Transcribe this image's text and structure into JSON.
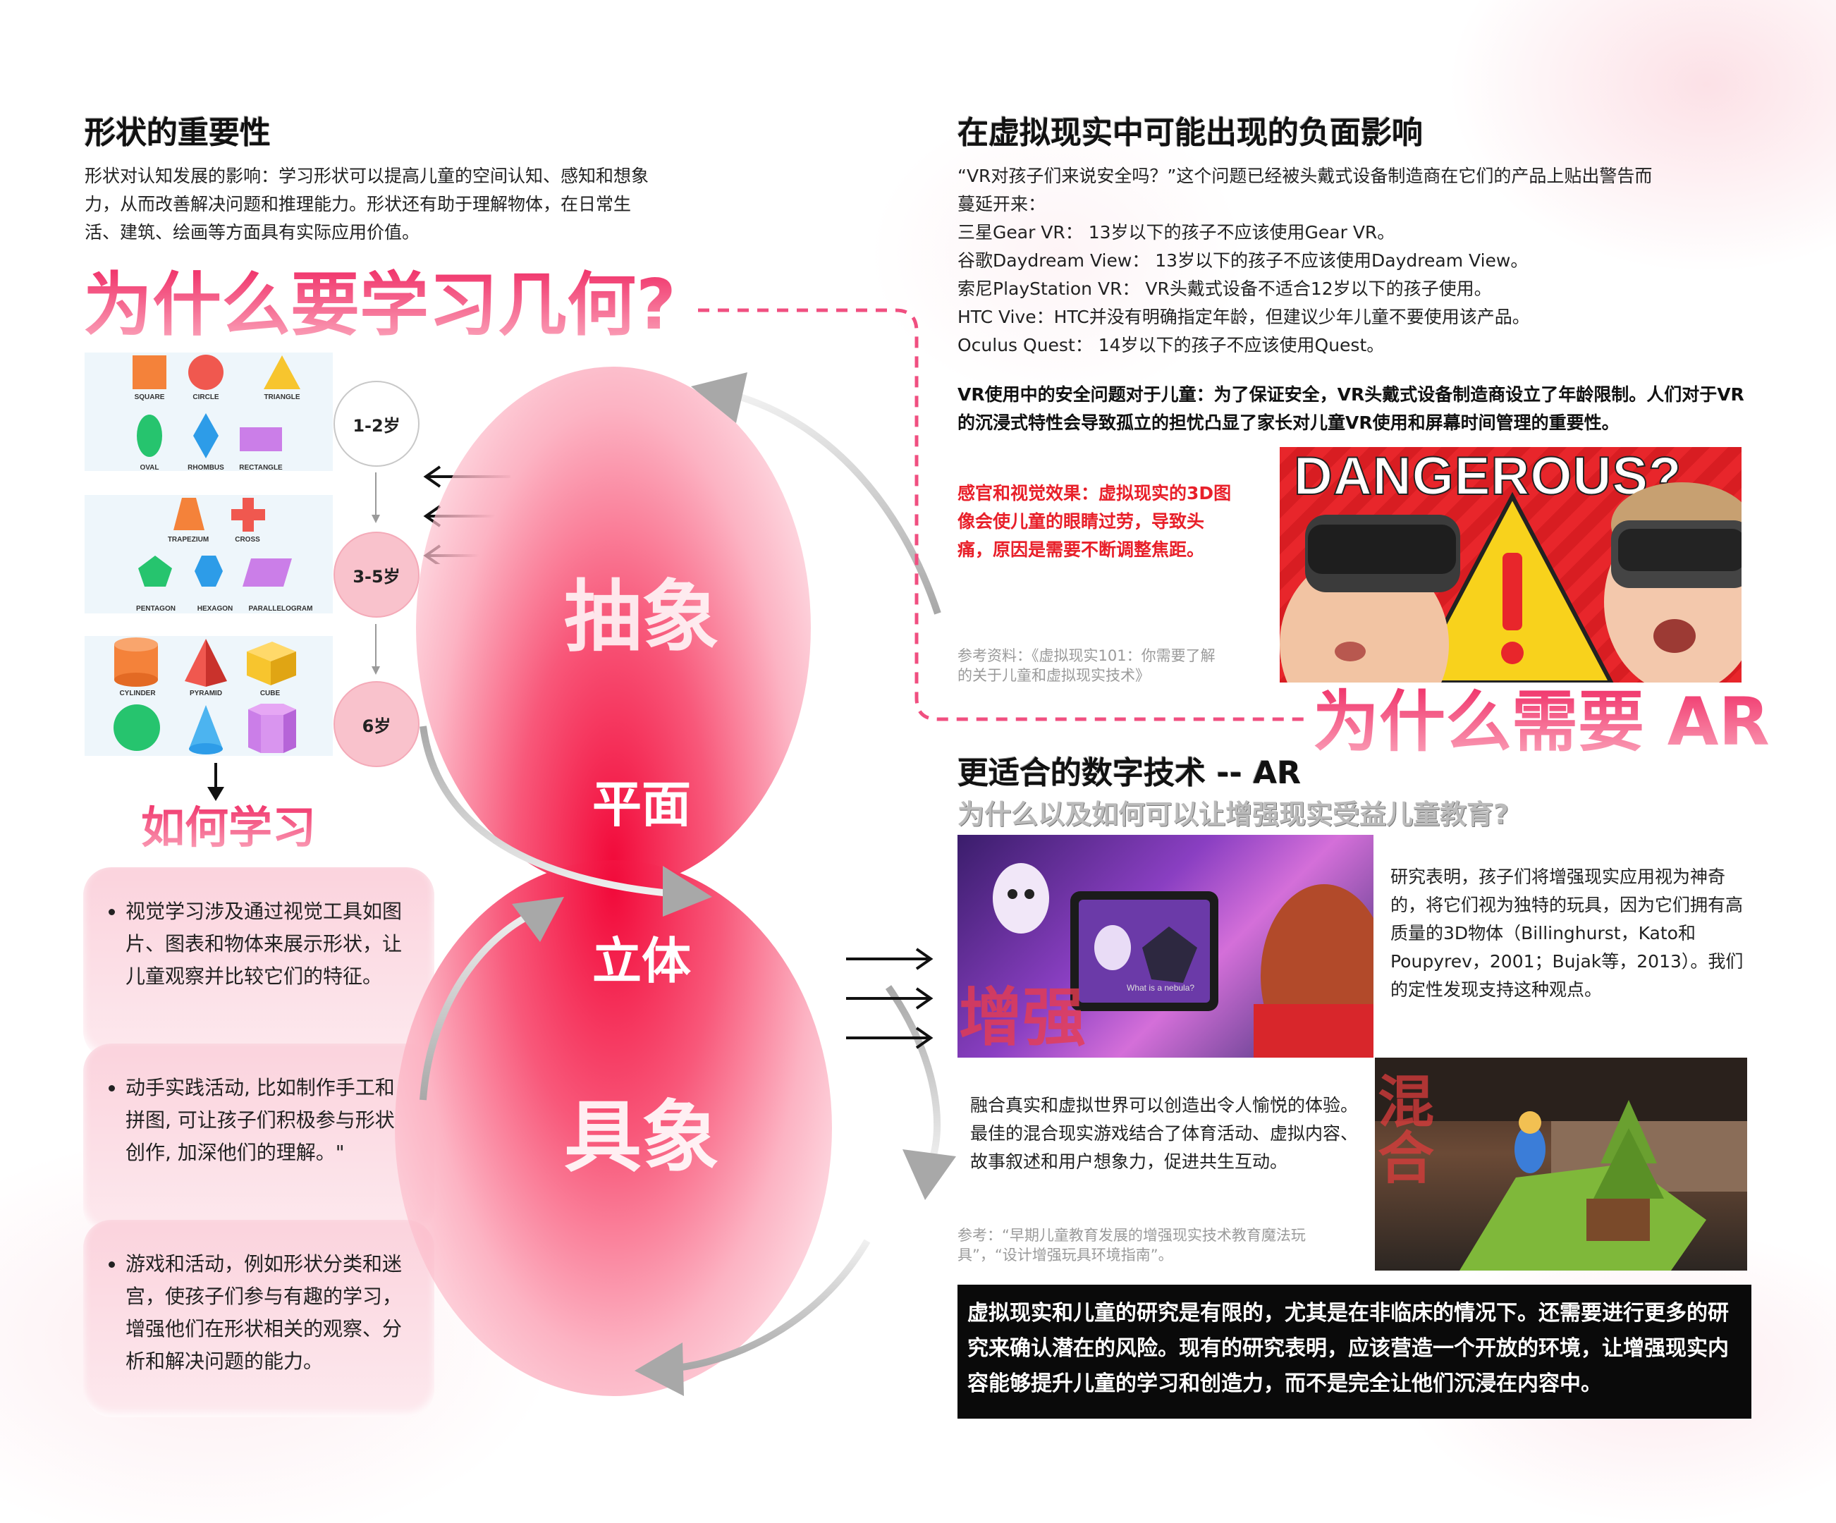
{
  "left": {
    "shape_heading": "形状的重要性",
    "shape_paragraph": "形状对认知发展的影响：学习形状可以提高儿童的空间认知、感知和想象力，从而改善解决问题和推理能力。形状还有助于理解物体，在日常生活、建筑、绘画等方面具有实际应用价值。",
    "why_geometry": "为什么要学习几何?",
    "shape_labels": {
      "square": "SQUARE",
      "circle": "CIRCLE",
      "triangle": "TRIANGLE",
      "oval": "OVAL",
      "rhombus": "RHOMBUS",
      "rectangle": "RECTANGLE",
      "trapezium": "TRAPEZIUM",
      "cross": "CROSS",
      "pentagon": "PENTAGON",
      "hexagon": "HEXAGON",
      "parallelogram": "PARALLELOGRAM",
      "cylinder": "CYLINDER",
      "pyramid": "PYRAMID",
      "cube": "CUBE"
    },
    "ages": [
      "1-2岁",
      "3-5岁",
      "6岁"
    ],
    "how_to_learn": "如何学习",
    "bullets": [
      "视觉学习涉及通过视觉工具如图片、图表和物体来展示形状，让儿童观察并比较它们的特征。",
      "动手实践活动, 比如制作手工和拼图, 可让孩子们积极参与形状创作, 加深他们的理解。\"",
      "游戏和活动，例如形状分类和迷宫，使孩子们参与有趣的学习，增强他们在形状相关的观察、分析和解决问题的能力。"
    ]
  },
  "center": {
    "abstract": "抽象",
    "plane": "平面",
    "solid": "立体",
    "concrete": "具象"
  },
  "right": {
    "vr_heading": "在虚拟现实中可能出现的负面影响",
    "vr_intro": "“VR对孩子们来说安全吗？”这个问题已经被头戴式设备制造商在它们的产品上贴出警告而蔓延开来：",
    "vr_items": [
      "三星Gear VR： 13岁以下的孩子不应该使用Gear VR。",
      "谷歌Daydream View： 13岁以下的孩子不应该使用Daydream View。",
      "索尼PlayStation VR： VR头戴式设备不适合12岁以下的孩子使用。",
      "HTC Vive：HTC并没有明确指定年龄，但建议少年儿童不要使用该产品。",
      "Oculus Quest： 14岁以下的孩子不应该使用Quest。"
    ],
    "vr_bold": "VR使用中的安全问题对于儿童：为了保证安全，VR头戴式设备制造商设立了年龄限制。人们对于VR的沉浸式特性会导致孤立的担忧凸显了家长对儿童VR使用和屏幕时间管理的重要性。",
    "sensory": "感官和视觉效果：虚拟现实的3D图像会使儿童的眼睛过劳，导致头痛，原因是需要不断调整焦距。",
    "ref1": "参考资料：《虚拟现实101：你需要了解的关于儿童和虚拟现实技术》",
    "dangerous": "DANGEROUS?",
    "why_ar": "为什么需要 AR",
    "ar_heading": "更适合的数字技术 -- AR",
    "ar_subheading": "为什么以及如何可以让增强现实受益儿童教育?",
    "ar_research": "研究表明，孩子们将增强现实应用视为神奇的，将它们视为独特的玩具，因为它们拥有高质量的3D物体（Billinghurst，Kato和Poupyrev，2001；Bujak等，2013）。我们的定性发现支持这种观点。",
    "tablet_caption": "What is a nebula?",
    "enhance_label": "增强",
    "mixed_label": "混合",
    "mixed_para": "融合真实和虚拟世界可以创造出令人愉悦的体验。最佳的混合现实游戏结合了体育活动、虚拟内容、故事叙述和用户想象力，促进共生互动。",
    "ref2": "参考：“早期儿童教育发展的增强现实技术教育魔法玩具”，“设计增强玩具环境指南”。",
    "conclusion": "虚拟现实和儿童的研究是有限的，尤其是在非临床的情况下。还需要进行更多的研究来确认潜在的风险。现有的研究表明，应该营造一个开放的环境，让增强现实内容能够提升儿童的学习和创造力，而不是完全让他们沉浸在内容中。"
  }
}
